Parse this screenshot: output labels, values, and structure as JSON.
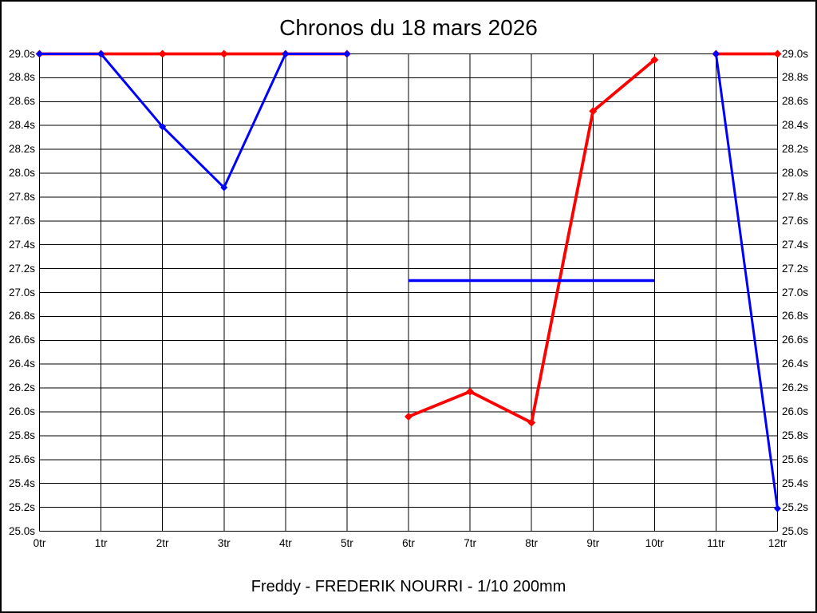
{
  "title": "Chronos du 18 mars 2026",
  "footer": "Freddy - FREDERIK NOURRI - 1/10 200mm",
  "colors": {
    "red": "#ff0000",
    "blue": "#0000ff",
    "grid": "#000000",
    "text": "#000000",
    "background": "#ffffff"
  },
  "chart_data": {
    "type": "line",
    "title": "Chronos du 18 mars 2026",
    "caption": "Freddy - FREDERIK NOURRI - 1/10 200mm",
    "x_unit": "tr",
    "y_unit": "s",
    "xlim": [
      0,
      12
    ],
    "ylim": [
      25.0,
      29.0
    ],
    "y_step": 0.2,
    "grid": true,
    "legend": "none",
    "x_tick_labels": [
      "0tr",
      "1tr",
      "2tr",
      "3tr",
      "4tr",
      "5tr",
      "6tr",
      "7tr",
      "8tr",
      "9tr",
      "10tr",
      "11tr",
      "12tr"
    ],
    "y_tick_labels": [
      "29.0s",
      "28.8s",
      "28.6s",
      "28.4s",
      "28.2s",
      "28.0s",
      "27.8s",
      "27.6s",
      "27.4s",
      "27.2s",
      "27.0s",
      "26.8s",
      "26.6s",
      "26.4s",
      "26.2s",
      "26.0s",
      "25.8s",
      "25.6s",
      "25.4s",
      "25.2s",
      "25.0s"
    ],
    "series": [
      {
        "name": "red-times",
        "color": "#ff0000",
        "marker": "diamond",
        "marker_size": 5,
        "line_width": 3.8,
        "segments": [
          [
            [
              0,
              29.0
            ],
            [
              1,
              29.0
            ],
            [
              2,
              29.0
            ],
            [
              3,
              29.0
            ],
            [
              4,
              29.0
            ],
            [
              5,
              29.0
            ]
          ],
          [
            [
              6,
              25.96
            ],
            [
              7,
              26.17
            ],
            [
              8,
              25.91
            ],
            [
              9,
              28.52
            ],
            [
              10,
              28.95
            ]
          ],
          [
            [
              11,
              29.0
            ],
            [
              12,
              29.0
            ]
          ]
        ]
      },
      {
        "name": "blue-flat-line",
        "color": "#0000ff",
        "marker": "none",
        "marker_size": 0,
        "line_width": 3.5,
        "segments": [
          [
            [
              6,
              27.1
            ],
            [
              10,
              27.1
            ]
          ]
        ]
      },
      {
        "name": "blue-times",
        "color": "#0000ff",
        "marker": "diamond",
        "marker_size": 4.5,
        "line_width": 3,
        "segments": [
          [
            [
              0,
              29.0
            ],
            [
              1,
              29.0
            ],
            [
              2,
              28.39
            ],
            [
              3,
              27.88
            ],
            [
              4,
              29.0
            ],
            [
              5,
              29.0
            ]
          ],
          [
            [
              11,
              29.0
            ],
            [
              12,
              25.19
            ]
          ]
        ]
      }
    ]
  }
}
